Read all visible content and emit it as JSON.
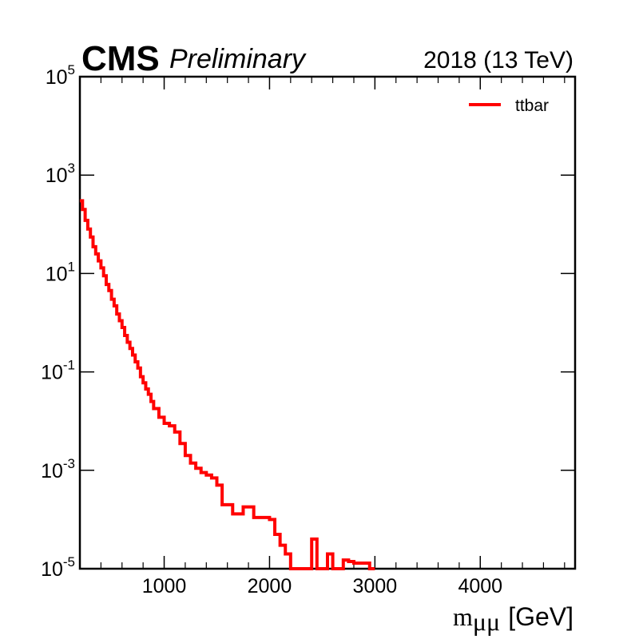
{
  "header": {
    "experiment": "CMS",
    "status": "Preliminary",
    "lumi_label": "2018 (13 TeV)"
  },
  "chart_data": {
    "type": "line",
    "style": "step-histogram",
    "xlabel_math": "m",
    "xlabel_sub": "μμ",
    "xlabel_unit": "[GeV]",
    "ylabel": "",
    "xlim": [
      200,
      4900
    ],
    "ylim": [
      1e-05,
      100000.0
    ],
    "yscale": "log",
    "x_ticks": [
      1000,
      2000,
      3000,
      4000
    ],
    "x_tick_labels": [
      "1000",
      "2000",
      "3000",
      "4000"
    ],
    "y_ticks": [
      {
        "base": "10",
        "exp": "-5",
        "value": 1e-05
      },
      {
        "base": "10",
        "exp": "-3",
        "value": 0.001
      },
      {
        "base": "10",
        "exp": "-1",
        "value": 0.1
      },
      {
        "base": "10",
        "exp": "1",
        "value": 10
      },
      {
        "base": "10",
        "exp": "3",
        "value": 1000
      },
      {
        "base": "10",
        "exp": "5",
        "value": 100000
      }
    ],
    "grid": false,
    "legend_position": "top-right",
    "series": [
      {
        "name": "ttbar",
        "color": "#ff0000",
        "bin_edges": [
          200,
          225,
          250,
          275,
          300,
          325,
          350,
          375,
          400,
          425,
          450,
          475,
          500,
          525,
          550,
          575,
          600,
          625,
          650,
          675,
          700,
          725,
          750,
          775,
          800,
          825,
          850,
          875,
          900,
          950,
          1000,
          1050,
          1100,
          1150,
          1200,
          1250,
          1300,
          1350,
          1400,
          1450,
          1500,
          1550,
          1600,
          1650,
          1700,
          1750,
          1800,
          1850,
          1900,
          1950,
          2000,
          2050,
          2100,
          2150,
          2200,
          2250,
          2300,
          2350,
          2400,
          2450,
          2500,
          2550,
          2600,
          2650,
          2700,
          2750,
          2800,
          2850,
          2900,
          2950
        ],
        "values": [
          300,
          200,
          120,
          80,
          55,
          35,
          25,
          18,
          13,
          9,
          6,
          4.5,
          3,
          2.2,
          1.5,
          1.1,
          0.8,
          0.55,
          0.4,
          0.3,
          0.22,
          0.16,
          0.12,
          0.08,
          0.06,
          0.045,
          0.035,
          0.025,
          0.018,
          0.012,
          0.009,
          0.008,
          0.006,
          0.0035,
          0.002,
          0.0014,
          0.0011,
          0.0009,
          0.0008,
          0.0007,
          0.0005,
          0.0002,
          0.0002,
          0.00013,
          0.00013,
          0.00018,
          0.00018,
          0.00011,
          0.00011,
          0.00011,
          0.0001,
          5e-05,
          3e-05,
          2e-05,
          0,
          0,
          0,
          0,
          4e-05,
          1e-05,
          1e-05,
          2e-05,
          0,
          0,
          1.5e-05,
          1.4e-05,
          1.3e-05,
          1.3e-05,
          1.3e-05,
          0
        ]
      }
    ]
  }
}
